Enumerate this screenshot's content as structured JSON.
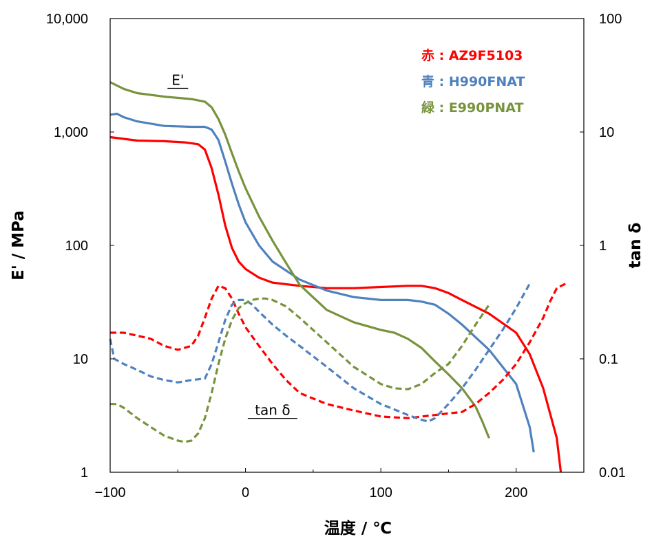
{
  "chart_data": {
    "type": "line",
    "xlabel": "温度 / ℃",
    "ylabel": "E' / MPa",
    "y2label": "tan δ",
    "xlim": [
      -100,
      250
    ],
    "ylim": [
      1,
      10000
    ],
    "y2lim": [
      0.01,
      100
    ],
    "yscale": "log",
    "y2scale": "log",
    "x_ticks": [
      "−100",
      "0",
      "100",
      "200"
    ],
    "x_tick_values": [
      -100,
      0,
      100,
      200
    ],
    "y_ticks": [
      "10,000",
      "1,000",
      "100",
      "10",
      "1"
    ],
    "y_tick_values": [
      10000,
      1000,
      100,
      10,
      1
    ],
    "y2_ticks": [
      "100",
      "10",
      "1",
      "0.1",
      "0.01"
    ],
    "y2_tick_values": [
      100,
      10,
      1,
      0.1,
      0.01
    ],
    "grid": false,
    "legend_position": "top-right",
    "legend": [
      {
        "label": "赤 : AZ9F5103",
        "color": "#ff0000"
      },
      {
        "label": "青 : H990FNAT",
        "color": "#4f81bd"
      },
      {
        "label": "緑 : E990PNAT",
        "color": "#77933c"
      }
    ],
    "annotations": [
      {
        "text": "E'",
        "x": -50,
        "y": 2600
      },
      {
        "text": "tan δ",
        "x": 20,
        "y": 0.032
      }
    ],
    "series": [
      {
        "group": "E'",
        "axis": "left",
        "color": "#ff0000",
        "style": "solid",
        "x": [
          -100,
          -80,
          -60,
          -45,
          -35,
          -30,
          -25,
          -20,
          -15,
          -10,
          -5,
          0,
          10,
          20,
          40,
          60,
          80,
          100,
          120,
          130,
          140,
          150,
          160,
          180,
          200,
          210,
          220,
          230,
          233
        ],
        "y": [
          900,
          840,
          830,
          810,
          780,
          700,
          480,
          280,
          150,
          95,
          72,
          62,
          52,
          47,
          44,
          42,
          42,
          43,
          44,
          44,
          42,
          38,
          33,
          25,
          17,
          11,
          5.5,
          2,
          1
        ]
      },
      {
        "group": "E'",
        "axis": "left",
        "color": "#4f81bd",
        "style": "solid",
        "x": [
          -100,
          -95,
          -90,
          -80,
          -60,
          -40,
          -30,
          -25,
          -20,
          -15,
          -10,
          -5,
          0,
          10,
          20,
          30,
          40,
          60,
          80,
          100,
          120,
          130,
          140,
          150,
          160,
          180,
          200,
          210,
          213
        ],
        "y": [
          1420,
          1450,
          1350,
          1240,
          1130,
          1110,
          1110,
          1050,
          850,
          550,
          350,
          230,
          160,
          100,
          72,
          60,
          50,
          40,
          35,
          33,
          33,
          32,
          30,
          25,
          20,
          12,
          6,
          2.5,
          1.5
        ]
      },
      {
        "group": "E'",
        "axis": "left",
        "color": "#77933c",
        "style": "solid",
        "x": [
          -100,
          -90,
          -80,
          -60,
          -40,
          -30,
          -25,
          -20,
          -15,
          -10,
          -5,
          0,
          10,
          20,
          30,
          40,
          60,
          80,
          100,
          110,
          120,
          130,
          140,
          150,
          160,
          170,
          175,
          180
        ],
        "y": [
          2750,
          2400,
          2200,
          2050,
          1950,
          1850,
          1650,
          1300,
          950,
          650,
          450,
          320,
          180,
          110,
          70,
          45,
          27,
          21,
          18,
          17,
          15,
          12.5,
          9.5,
          7.3,
          5.5,
          3.8,
          2.8,
          2
        ]
      },
      {
        "group": "tan δ",
        "axis": "right",
        "color": "#ff0000",
        "style": "dashed",
        "x": [
          -100,
          -90,
          -80,
          -70,
          -60,
          -55,
          -50,
          -45,
          -40,
          -35,
          -30,
          -25,
          -20,
          -15,
          -10,
          -5,
          0,
          10,
          20,
          30,
          40,
          60,
          80,
          100,
          120,
          140,
          150,
          160,
          170,
          180,
          190,
          200,
          210,
          220,
          225,
          230,
          238
        ],
        "y": [
          0.17,
          0.17,
          0.16,
          0.15,
          0.13,
          0.125,
          0.12,
          0.125,
          0.13,
          0.16,
          0.23,
          0.34,
          0.44,
          0.42,
          0.34,
          0.25,
          0.19,
          0.13,
          0.09,
          0.065,
          0.05,
          0.04,
          0.035,
          0.031,
          0.03,
          0.032,
          0.033,
          0.034,
          0.04,
          0.05,
          0.065,
          0.09,
          0.14,
          0.23,
          0.32,
          0.42,
          0.47
        ]
      },
      {
        "group": "tan δ",
        "axis": "right",
        "color": "#4f81bd",
        "style": "dashed",
        "x": [
          -100,
          -97,
          -90,
          -80,
          -70,
          -60,
          -50,
          -40,
          -30,
          -25,
          -20,
          -15,
          -10,
          -5,
          0,
          5,
          10,
          20,
          30,
          40,
          60,
          80,
          100,
          120,
          130,
          135,
          140,
          150,
          160,
          170,
          180,
          190,
          200,
          210
        ],
        "y": [
          0.15,
          0.1,
          0.09,
          0.08,
          0.07,
          0.065,
          0.062,
          0.065,
          0.067,
          0.09,
          0.14,
          0.22,
          0.3,
          0.33,
          0.33,
          0.3,
          0.26,
          0.2,
          0.16,
          0.13,
          0.085,
          0.055,
          0.04,
          0.032,
          0.029,
          0.028,
          0.03,
          0.04,
          0.055,
          0.08,
          0.12,
          0.18,
          0.28,
          0.46
        ]
      },
      {
        "group": "tan δ",
        "axis": "right",
        "color": "#77933c",
        "style": "dashed",
        "x": [
          -100,
          -95,
          -90,
          -80,
          -70,
          -60,
          -50,
          -45,
          -40,
          -35,
          -30,
          -25,
          -20,
          -15,
          -10,
          -5,
          0,
          5,
          10,
          15,
          20,
          30,
          40,
          60,
          80,
          100,
          110,
          120,
          130,
          140,
          150,
          160,
          170,
          180
        ],
        "y": [
          0.04,
          0.04,
          0.037,
          0.03,
          0.025,
          0.021,
          0.019,
          0.0185,
          0.019,
          0.022,
          0.03,
          0.05,
          0.09,
          0.15,
          0.22,
          0.28,
          0.31,
          0.33,
          0.34,
          0.34,
          0.33,
          0.29,
          0.23,
          0.14,
          0.085,
          0.06,
          0.055,
          0.054,
          0.06,
          0.075,
          0.09,
          0.13,
          0.2,
          0.3
        ]
      }
    ]
  }
}
